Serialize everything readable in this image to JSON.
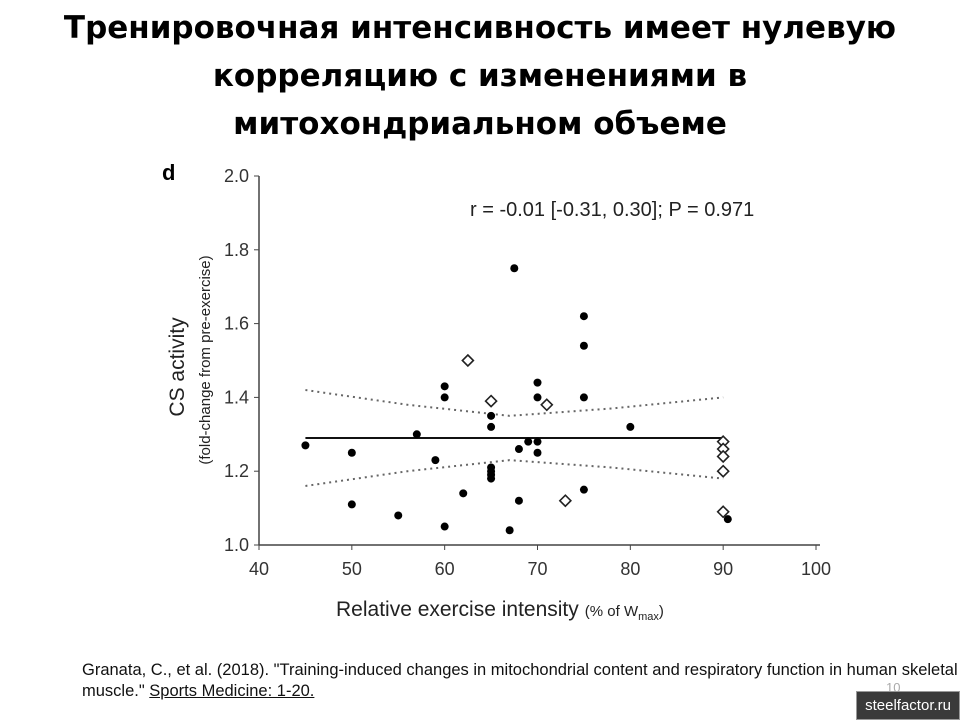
{
  "slide": {
    "title_lines": [
      "Тренировочная интенсивность имеет нулевую",
      "корреляцию с изменениями в",
      "митохондриальном объеме"
    ],
    "citation_part1": "Granata, C., et al. (2018). \"Training-induced changes in mitochondrial content and respiratory function in human skeletal muscle.\" ",
    "citation_journal": "Sports Medicine: 1-20.",
    "page_number": "10",
    "watermark": "steelfactor.ru"
  },
  "chart_data": {
    "type": "scatter",
    "panel_label": "d",
    "annotation": "r = -0.01 [-0.31, 0.30]; P = 0.971",
    "xlabel": "Relative exercise intensity",
    "xlabel_suffix": "(% of W",
    "xlabel_sub": "max",
    "ylabel": "CS activity",
    "ylabel2": "(fold-change from pre-exercise)",
    "xlim": [
      40,
      100
    ],
    "ylim": [
      1.0,
      2.0
    ],
    "xticks": [
      "40",
      "50",
      "60",
      "70",
      "80",
      "90",
      "100"
    ],
    "yticks": [
      "1.0",
      "1.2",
      "1.4",
      "1.6",
      "1.8",
      "2.0"
    ],
    "series": [
      {
        "name": "filled",
        "marker": "circle",
        "points": [
          [
            45,
            1.27
          ],
          [
            50,
            1.25
          ],
          [
            50,
            1.11
          ],
          [
            55,
            1.08
          ],
          [
            57,
            1.3
          ],
          [
            59,
            1.23
          ],
          [
            60,
            1.43
          ],
          [
            60,
            1.4
          ],
          [
            60,
            1.05
          ],
          [
            62,
            1.14
          ],
          [
            65,
            1.35
          ],
          [
            65,
            1.32
          ],
          [
            65,
            1.21
          ],
          [
            65,
            1.2
          ],
          [
            65,
            1.19
          ],
          [
            65,
            1.18
          ],
          [
            67.5,
            1.75
          ],
          [
            67,
            1.04
          ],
          [
            68,
            1.26
          ],
          [
            68,
            1.12
          ],
          [
            69,
            1.28
          ],
          [
            70,
            1.44
          ],
          [
            70,
            1.4
          ],
          [
            70,
            1.28
          ],
          [
            70,
            1.25
          ],
          [
            75,
            1.62
          ],
          [
            75,
            1.54
          ],
          [
            75,
            1.4
          ],
          [
            75,
            1.15
          ],
          [
            80,
            1.32
          ],
          [
            90.5,
            1.07
          ]
        ]
      },
      {
        "name": "open",
        "marker": "diamond",
        "points": [
          [
            62.5,
            1.5
          ],
          [
            65,
            1.39
          ],
          [
            71,
            1.38
          ],
          [
            73,
            1.12
          ],
          [
            90,
            1.28
          ],
          [
            90,
            1.26
          ],
          [
            90,
            1.24
          ],
          [
            90,
            1.2
          ],
          [
            90,
            1.09
          ]
        ]
      }
    ],
    "fit_line": [
      [
        45,
        1.29
      ],
      [
        90,
        1.29
      ]
    ],
    "ci_upper": [
      [
        45,
        1.42
      ],
      [
        56,
        1.38
      ],
      [
        67,
        1.35
      ],
      [
        78,
        1.37
      ],
      [
        90,
        1.4
      ]
    ],
    "ci_lower": [
      [
        45,
        1.16
      ],
      [
        56,
        1.2
      ],
      [
        67,
        1.23
      ],
      [
        78,
        1.21
      ],
      [
        90,
        1.18
      ]
    ]
  }
}
